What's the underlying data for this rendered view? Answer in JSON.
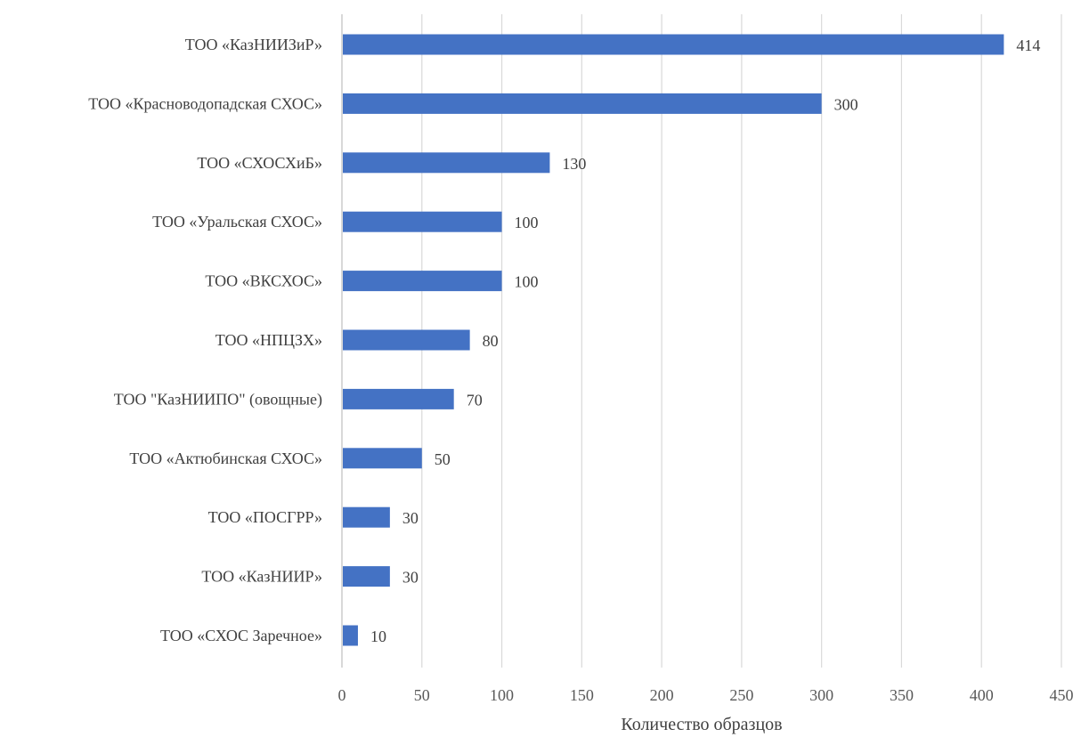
{
  "chart_data": {
    "type": "bar",
    "orientation": "horizontal",
    "categories": [
      "ТОО «КазНИИЗиР»",
      "ТОО «Красноводопадская СХОС»",
      "ТОО «СХОСХиБ»",
      "ТОО «Уральская СХОС»",
      "ТОО «ВКСХОС»",
      "ТОО «НПЦЗХ»",
      "ТОО \"КазНИИПО\" (овощные)",
      "ТОО «Актюбинская СХОС»",
      "ТОО «ПОСГРР»",
      "ТОО «КазНИИР»",
      "ТОО «СХОС Заречное»"
    ],
    "values": [
      414,
      300,
      130,
      100,
      100,
      80,
      70,
      50,
      30,
      30,
      10
    ],
    "xlabel": "Количество образцов",
    "ylabel": "",
    "xlim": [
      0,
      450
    ],
    "xticks": [
      "0",
      "50",
      "100",
      "150",
      "200",
      "250",
      "300",
      "350",
      "400",
      "450"
    ],
    "grid": "vertical",
    "data_labels": true,
    "bar_color": "#4472c4",
    "grid_color": "#d9d9d9"
  }
}
